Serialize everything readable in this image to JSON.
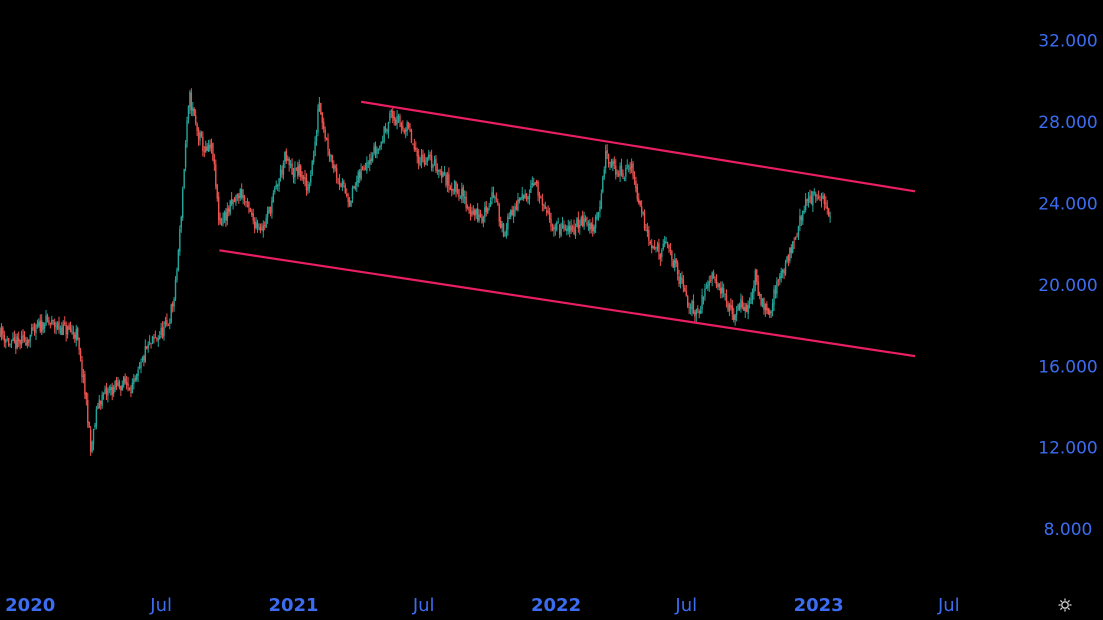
{
  "chart_data": {
    "type": "candlestick",
    "theme": {
      "background": "#000000",
      "axis_text": "#3c6cf0",
      "up_color": "#26a69a",
      "down_color": "#ef5350",
      "trendline_color": "#e91e63"
    },
    "y_ticks": [
      "32.000",
      "28.000",
      "24.000",
      "20.000",
      "16.000",
      "12.000",
      "8.000"
    ],
    "y_tick_values": [
      32000,
      28000,
      24000,
      20000,
      16000,
      12000,
      8000
    ],
    "ylim": [
      5500,
      34000
    ],
    "x_ticks": [
      {
        "label": "2020",
        "date": "2020-01-01",
        "bold": true
      },
      {
        "label": "Jul",
        "date": "2020-07-01",
        "bold": false
      },
      {
        "label": "2021",
        "date": "2021-01-01",
        "bold": true
      },
      {
        "label": "Jul",
        "date": "2021-07-01",
        "bold": false
      },
      {
        "label": "2022",
        "date": "2022-01-01",
        "bold": true
      },
      {
        "label": "Jul",
        "date": "2022-07-01",
        "bold": false
      },
      {
        "label": "2023",
        "date": "2023-01-01",
        "bold": true
      },
      {
        "label": "Jul",
        "date": "2023-07-01",
        "bold": false
      }
    ],
    "xlim": [
      "2019-11-20",
      "2023-10-01"
    ],
    "series": [
      {
        "points": [
          [
            "2019-11-20",
            17800
          ],
          [
            "2019-12-05",
            17000
          ],
          [
            "2019-12-20",
            17200
          ],
          [
            "2020-01-05",
            17600
          ],
          [
            "2020-01-20",
            18200
          ],
          [
            "2020-02-05",
            18000
          ],
          [
            "2020-02-20",
            17800
          ],
          [
            "2020-03-05",
            17600
          ],
          [
            "2020-03-20",
            14000
          ],
          [
            "2020-03-25",
            11800
          ],
          [
            "2020-04-05",
            14300
          ],
          [
            "2020-04-20",
            14800
          ],
          [
            "2020-05-10",
            15200
          ],
          [
            "2020-05-25",
            15000
          ],
          [
            "2020-06-10",
            16800
          ],
          [
            "2020-06-25",
            17400
          ],
          [
            "2020-07-10",
            18000
          ],
          [
            "2020-07-20",
            19500
          ],
          [
            "2020-07-28",
            23000
          ],
          [
            "2020-08-05",
            27500
          ],
          [
            "2020-08-10",
            29200
          ],
          [
            "2020-08-20",
            27500
          ],
          [
            "2020-09-01",
            26500
          ],
          [
            "2020-09-10",
            26700
          ],
          [
            "2020-09-20",
            23000
          ],
          [
            "2020-10-05",
            23800
          ],
          [
            "2020-10-20",
            24600
          ],
          [
            "2020-11-05",
            23200
          ],
          [
            "2020-11-20",
            22800
          ],
          [
            "2020-12-05",
            24400
          ],
          [
            "2020-12-20",
            26200
          ],
          [
            "2021-01-01",
            25500
          ],
          [
            "2021-01-10",
            25600
          ],
          [
            "2021-01-20",
            24600
          ],
          [
            "2021-02-01",
            27000
          ],
          [
            "2021-02-05",
            29300
          ],
          [
            "2021-02-15",
            27200
          ],
          [
            "2021-02-25",
            26000
          ],
          [
            "2021-03-10",
            24800
          ],
          [
            "2021-03-20",
            24200
          ],
          [
            "2021-04-01",
            25200
          ],
          [
            "2021-04-15",
            26300
          ],
          [
            "2021-05-01",
            26800
          ],
          [
            "2021-05-15",
            28400
          ],
          [
            "2021-05-25",
            28000
          ],
          [
            "2021-06-10",
            27600
          ],
          [
            "2021-06-20",
            26300
          ],
          [
            "2021-07-05",
            26200
          ],
          [
            "2021-07-20",
            25800
          ],
          [
            "2021-08-05",
            25000
          ],
          [
            "2021-08-20",
            24600
          ],
          [
            "2021-09-01",
            23800
          ],
          [
            "2021-09-20",
            23200
          ],
          [
            "2021-10-05",
            24600
          ],
          [
            "2021-10-20",
            22600
          ],
          [
            "2021-11-05",
            23800
          ],
          [
            "2021-11-20",
            24400
          ],
          [
            "2021-12-01",
            25200
          ],
          [
            "2021-12-15",
            23600
          ],
          [
            "2022-01-01",
            22800
          ],
          [
            "2022-01-20",
            22600
          ],
          [
            "2022-02-05",
            23200
          ],
          [
            "2022-02-20",
            22800
          ],
          [
            "2022-03-05",
            24200
          ],
          [
            "2022-03-10",
            26400
          ],
          [
            "2022-03-20",
            25800
          ],
          [
            "2022-04-05",
            25400
          ],
          [
            "2022-04-15",
            26000
          ],
          [
            "2022-04-25",
            24200
          ],
          [
            "2022-05-10",
            22400
          ],
          [
            "2022-05-25",
            21500
          ],
          [
            "2022-06-05",
            22000
          ],
          [
            "2022-06-20",
            20400
          ],
          [
            "2022-07-05",
            19000
          ],
          [
            "2022-07-15",
            18700
          ],
          [
            "2022-07-25",
            19300
          ],
          [
            "2022-08-05",
            20700
          ],
          [
            "2022-08-15",
            20100
          ],
          [
            "2022-08-25",
            19200
          ],
          [
            "2022-09-05",
            18300
          ],
          [
            "2022-09-15",
            19200
          ],
          [
            "2022-09-25",
            18700
          ],
          [
            "2022-10-05",
            20400
          ],
          [
            "2022-10-12",
            19300
          ],
          [
            "2022-10-25",
            18700
          ],
          [
            "2022-11-05",
            20100
          ],
          [
            "2022-11-15",
            21000
          ],
          [
            "2022-11-25",
            21800
          ],
          [
            "2022-12-05",
            23000
          ],
          [
            "2022-12-15",
            24200
          ],
          [
            "2022-12-25",
            24300
          ],
          [
            "2023-01-05",
            24100
          ],
          [
            "2023-01-12",
            23900
          ],
          [
            "2023-01-18",
            23300
          ]
        ]
      }
    ],
    "trendlines": [
      {
        "start": [
          "2021-04-05",
          29000
        ],
        "end": [
          "2023-05-15",
          24600
        ]
      },
      {
        "start": [
          "2020-09-20",
          21700
        ],
        "end": [
          "2023-05-15",
          16500
        ]
      }
    ]
  },
  "icons": {
    "settings": "settings-gear-icon"
  }
}
